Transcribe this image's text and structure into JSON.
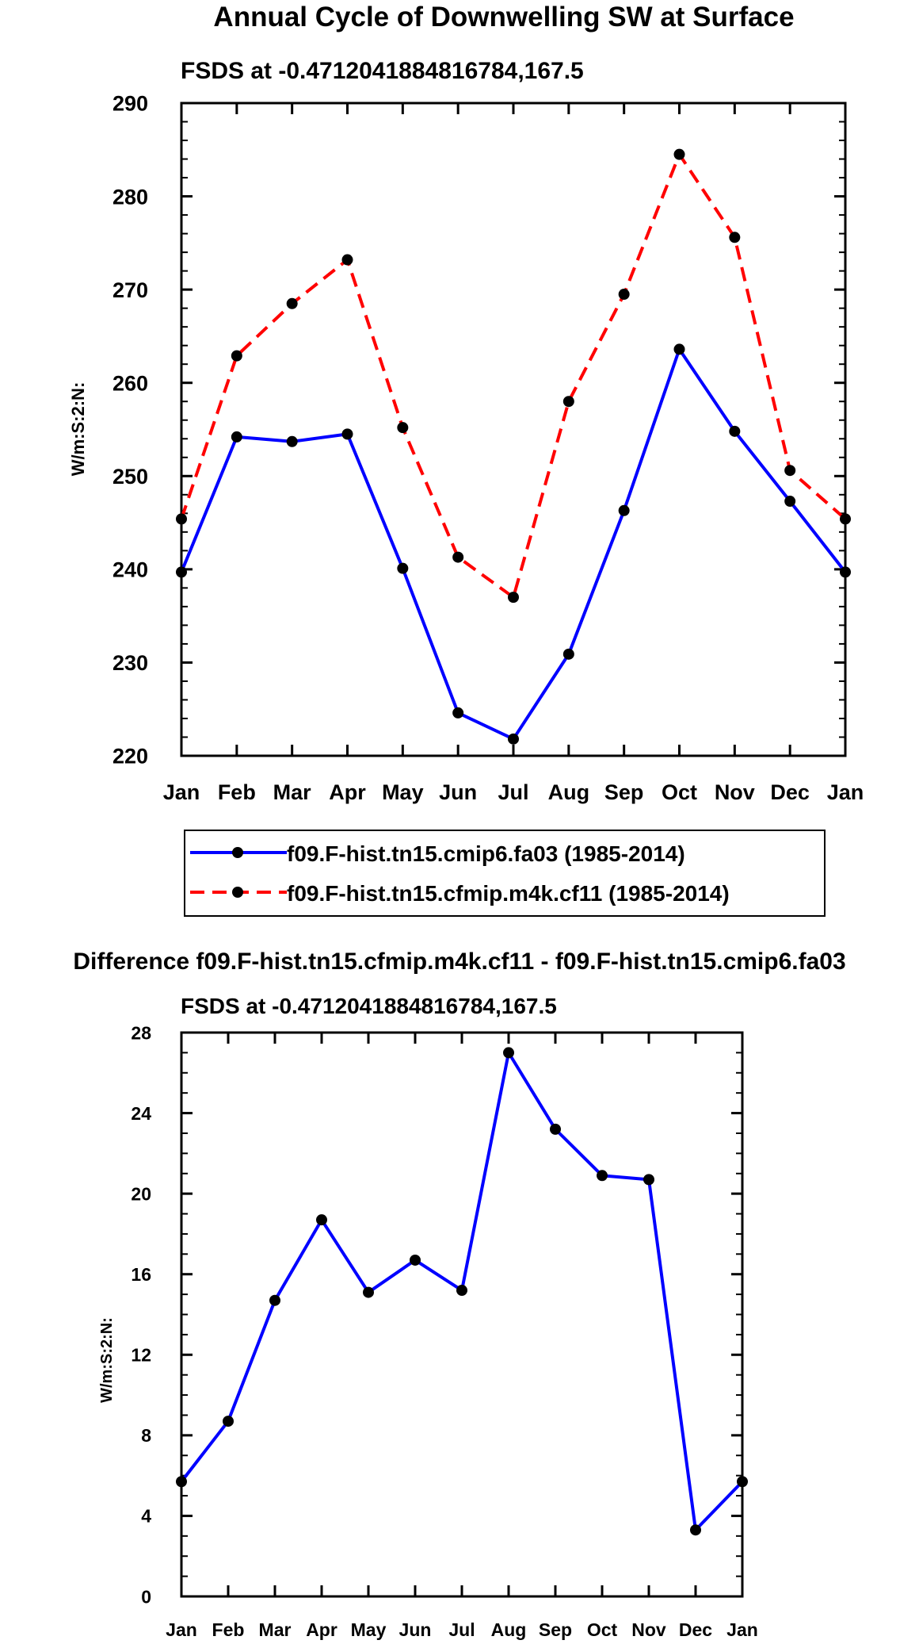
{
  "chart_data": [
    {
      "type": "line",
      "title": "Annual Cycle of Downwelling SW at Surface",
      "subtitle": "FSDS at -0.4712041884816784,167.5",
      "xlabel": "",
      "ylabel": "W/m:S:2:N:",
      "categories": [
        "Jan",
        "Feb",
        "Mar",
        "Apr",
        "May",
        "Jun",
        "Jul",
        "Aug",
        "Sep",
        "Oct",
        "Nov",
        "Dec",
        "Jan"
      ],
      "ylim": [
        220,
        290
      ],
      "yticks": [
        "220",
        "230",
        "240",
        "250",
        "260",
        "270",
        "280",
        "290"
      ],
      "series": [
        {
          "name": "f09.F-hist.tn15.cmip6.fa03 (1985-2014)",
          "color": "#0000ff",
          "dash": "solid",
          "values": [
            239.7,
            254.2,
            253.7,
            254.5,
            240.1,
            224.6,
            221.8,
            230.9,
            246.3,
            263.6,
            254.8,
            247.3,
            239.7
          ]
        },
        {
          "name": "f09.F-hist.tn15.cfmip.m4k.cf11 (1985-2014)",
          "color": "#ff0000",
          "dash": "dashed",
          "values": [
            245.4,
            262.9,
            268.5,
            273.2,
            255.2,
            241.3,
            237.0,
            258.0,
            269.5,
            284.5,
            275.6,
            250.6,
            245.4
          ]
        }
      ],
      "legend": "bottom"
    },
    {
      "type": "line",
      "title": "Difference f09.F-hist.tn15.cfmip.m4k.cf11 - f09.F-hist.tn15.cmip6.fa03",
      "subtitle": "FSDS at -0.4712041884816784,167.5",
      "xlabel": "",
      "ylabel": "W/m:S:2:N:",
      "categories": [
        "Jan",
        "Feb",
        "Mar",
        "Apr",
        "May",
        "Jun",
        "Jul",
        "Aug",
        "Sep",
        "Oct",
        "Nov",
        "Dec",
        "Jan"
      ],
      "ylim": [
        0,
        28
      ],
      "yticks": [
        "0",
        "4",
        "8",
        "12",
        "16",
        "20",
        "24",
        "28"
      ],
      "series": [
        {
          "name": "Difference",
          "color": "#0000ff",
          "dash": "solid",
          "values": [
            5.7,
            8.7,
            14.7,
            18.7,
            15.1,
            16.7,
            15.2,
            27.0,
            23.2,
            20.9,
            20.7,
            3.3,
            5.7
          ]
        }
      ]
    }
  ]
}
